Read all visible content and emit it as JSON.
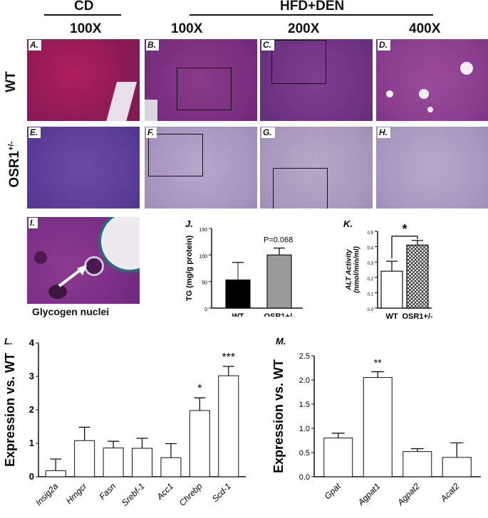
{
  "headers": {
    "cd": "CD",
    "hfd": "HFD+DEN",
    "mag": [
      "100X",
      "100X",
      "200X",
      "400X"
    ]
  },
  "rows": {
    "wt": "WT",
    "osr1": "OSR1",
    "osr1_sup": "+/-"
  },
  "panels": [
    "A.",
    "B.",
    "C.",
    "D.",
    "E.",
    "F.",
    "G.",
    "H.",
    "I."
  ],
  "glycogen_label": "Glycogen nuclei",
  "chart_data": [
    {
      "panel": "J.",
      "type": "bar",
      "categories": [
        "WT",
        "OSR1+/-"
      ],
      "values": [
        53,
        100
      ],
      "errors": [
        33,
        13
      ],
      "colors": [
        "#000000",
        "#9a9a9a"
      ],
      "ylabel": "TG (mg/g protein)",
      "ylim": [
        0,
        150
      ],
      "yticks": [
        0,
        50,
        100,
        150
      ],
      "annotation": "P=0.068"
    },
    {
      "panel": "K.",
      "type": "bar",
      "categories": [
        "WT",
        "OSR1+/-"
      ],
      "values": [
        0.24,
        0.41
      ],
      "errors": [
        0.065,
        0.03
      ],
      "ylabel": "ALT Activity (nmol/min/ml)",
      "ylim": [
        0,
        0.5
      ],
      "yticks": [
        0.0,
        0.1,
        0.2,
        0.3,
        0.4,
        0.5
      ],
      "annotation": "*"
    },
    {
      "panel": "L.",
      "type": "bar",
      "categories": [
        "Insig2a",
        "Hmgcr",
        "Fasn",
        "Srebf-1",
        "Acc1",
        "Chrebp",
        "Scd-1"
      ],
      "values": [
        0.18,
        1.08,
        0.86,
        0.85,
        0.57,
        1.98,
        3.02
      ],
      "errors": [
        0.35,
        0.4,
        0.2,
        0.3,
        0.42,
        0.38,
        0.28
      ],
      "stars": [
        "",
        "",
        "",
        "",
        "",
        "*",
        "***"
      ],
      "ylabel": "Expression vs. WT",
      "ylim": [
        0,
        4
      ],
      "yticks": [
        0,
        1,
        2,
        3,
        4
      ]
    },
    {
      "panel": "M.",
      "type": "bar",
      "categories": [
        "Gpat",
        "Agpat1",
        "Agpat2",
        "Acat2"
      ],
      "values": [
        0.8,
        2.05,
        0.52,
        0.4
      ],
      "errors": [
        0.1,
        0.12,
        0.06,
        0.3
      ],
      "stars": [
        "",
        "**",
        "",
        ""
      ],
      "ylabel": "Expression vs. WT",
      "ylim": [
        0,
        2.5
      ],
      "yticks": [
        0.0,
        0.5,
        1.0,
        1.5,
        2.0,
        2.5
      ]
    }
  ]
}
